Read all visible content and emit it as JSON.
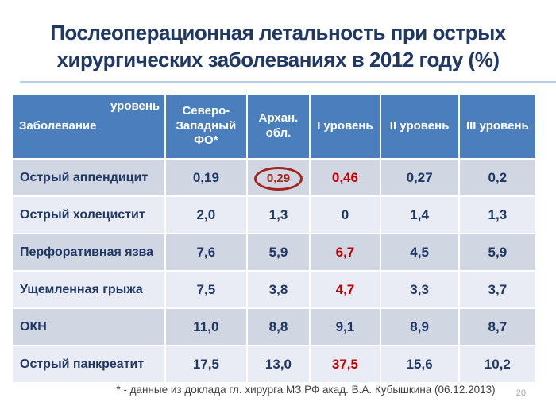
{
  "slide": {
    "title": "Послеоперационная летальность при острых хирургических заболеваниях в 2012 году (%)",
    "footnote": "* - данные из доклада гл. хирурга МЗ РФ акад. В.А. Кубышкина (06.12.2013)",
    "page_number": "20"
  },
  "colors": {
    "title": "#1f3864",
    "header_bg": "#4a7ebc",
    "band_dark": "#d0d7e3",
    "band_light": "#e9ecf4",
    "value_navy": "#1f3864",
    "value_red": "#c00000",
    "circle_red": "#a42420",
    "divider_blue": "#b9cde5"
  },
  "table": {
    "corner": {
      "top_right": "уровень",
      "bottom_left": "Заболевание"
    },
    "columns": [
      "Северо-Западный ФО*",
      "Архан. обл.",
      "I уровень",
      "II уровень",
      "III уровень"
    ],
    "rows": [
      {
        "label": "Острый аппендицит",
        "cells": [
          {
            "v": "0,19",
            "red": false,
            "circled": false
          },
          {
            "v": "0,29",
            "red": true,
            "circled": true
          },
          {
            "v": "0,46",
            "red": true,
            "circled": false
          },
          {
            "v": "0,27",
            "red": false,
            "circled": false
          },
          {
            "v": "0,2",
            "red": false,
            "circled": false
          }
        ]
      },
      {
        "label": "Острый холецистит",
        "cells": [
          {
            "v": "2,0",
            "red": false,
            "circled": false
          },
          {
            "v": "1,3",
            "red": false,
            "circled": false
          },
          {
            "v": "0",
            "red": false,
            "circled": false
          },
          {
            "v": "1,4",
            "red": false,
            "circled": false
          },
          {
            "v": "1,3",
            "red": false,
            "circled": false
          }
        ]
      },
      {
        "label": "Перфоративная язва",
        "cells": [
          {
            "v": "7,6",
            "red": false,
            "circled": false
          },
          {
            "v": "5,9",
            "red": false,
            "circled": false
          },
          {
            "v": "6,7",
            "red": true,
            "circled": false
          },
          {
            "v": "4,5",
            "red": false,
            "circled": false
          },
          {
            "v": "5,9",
            "red": false,
            "circled": false
          }
        ]
      },
      {
        "label": "Ущемленная грыжа",
        "cells": [
          {
            "v": "7,5",
            "red": false,
            "circled": false
          },
          {
            "v": "3,8",
            "red": false,
            "circled": false
          },
          {
            "v": "4,7",
            "red": true,
            "circled": false
          },
          {
            "v": "3,3",
            "red": false,
            "circled": false
          },
          {
            "v": "3,7",
            "red": false,
            "circled": false
          }
        ]
      },
      {
        "label": "ОКН",
        "cells": [
          {
            "v": "11,0",
            "red": false,
            "circled": false
          },
          {
            "v": "8,8",
            "red": false,
            "circled": false
          },
          {
            "v": "9,1",
            "red": false,
            "circled": false
          },
          {
            "v": "8,9",
            "red": false,
            "circled": false
          },
          {
            "v": "8,7",
            "red": false,
            "circled": false
          }
        ]
      },
      {
        "label": "Острый панкреатит",
        "cells": [
          {
            "v": "17,5",
            "red": false,
            "circled": false
          },
          {
            "v": "13,0",
            "red": false,
            "circled": false
          },
          {
            "v": "37,5",
            "red": true,
            "circled": false
          },
          {
            "v": "15,6",
            "red": false,
            "circled": false
          },
          {
            "v": "10,2",
            "red": false,
            "circled": false
          }
        ]
      }
    ]
  }
}
